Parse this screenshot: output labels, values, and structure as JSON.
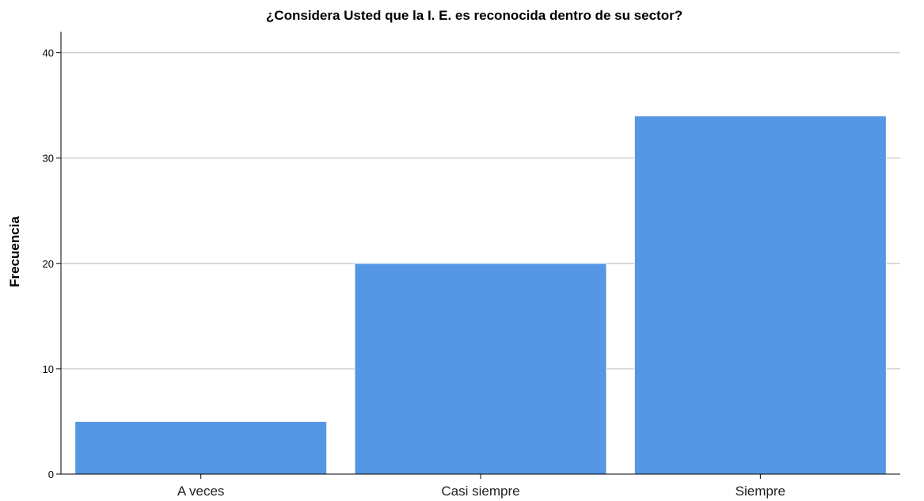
{
  "chart_data": {
    "type": "bar",
    "title": "¿Considera Usted que la  I. E. es reconocida dentro de su sector?",
    "xlabel": "",
    "ylabel": "Frecuencia",
    "categories": [
      "A veces",
      "Casi siempre",
      "Siempre"
    ],
    "values": [
      5,
      20,
      34
    ],
    "ylim": [
      0,
      42
    ],
    "yticks": [
      0,
      10,
      20,
      30,
      40
    ],
    "grid": true,
    "bar_color": "#5596e5",
    "bar_edge_color": "#ffffff",
    "grid_color": "#c8c8c8",
    "axis_color": "#000000"
  }
}
